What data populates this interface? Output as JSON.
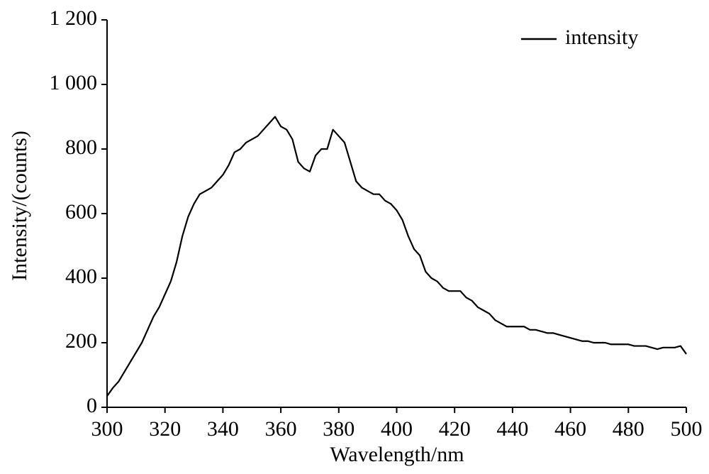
{
  "chart_data": {
    "type": "line",
    "xlabel": "Wavelength/nm",
    "ylabel": "Intensity/(counts)",
    "x": [
      300,
      302,
      304,
      306,
      308,
      310,
      312,
      314,
      316,
      318,
      320,
      322,
      324,
      326,
      328,
      330,
      332,
      334,
      336,
      338,
      340,
      342,
      344,
      346,
      348,
      350,
      352,
      354,
      356,
      358,
      360,
      362,
      364,
      366,
      368,
      370,
      372,
      374,
      376,
      378,
      380,
      382,
      384,
      386,
      388,
      390,
      392,
      394,
      396,
      398,
      400,
      402,
      404,
      406,
      408,
      410,
      412,
      414,
      416,
      418,
      420,
      422,
      424,
      426,
      428,
      430,
      432,
      434,
      436,
      438,
      440,
      442,
      444,
      446,
      448,
      450,
      452,
      454,
      456,
      458,
      460,
      462,
      464,
      466,
      468,
      470,
      472,
      474,
      476,
      478,
      480,
      482,
      484,
      486,
      488,
      490,
      492,
      494,
      496,
      498,
      500
    ],
    "series": [
      {
        "name": "intensity",
        "color": "#000000",
        "values": [
          35,
          60,
          80,
          110,
          140,
          170,
          200,
          240,
          280,
          310,
          350,
          390,
          450,
          530,
          590,
          630,
          660,
          670,
          680,
          700,
          720,
          750,
          790,
          800,
          820,
          830,
          840,
          860,
          880,
          900,
          870,
          860,
          830,
          760,
          740,
          730,
          780,
          800,
          800,
          860,
          840,
          820,
          760,
          700,
          680,
          670,
          660,
          660,
          640,
          630,
          610,
          580,
          530,
          490,
          470,
          420,
          400,
          390,
          370,
          360,
          360,
          360,
          340,
          330,
          310,
          300,
          290,
          270,
          260,
          250,
          250,
          250,
          250,
          240,
          240,
          235,
          230,
          230,
          225,
          220,
          215,
          210,
          205,
          205,
          200,
          200,
          200,
          195,
          195,
          195,
          195,
          190,
          190,
          190,
          185,
          180,
          185,
          185,
          185,
          190,
          165
        ]
      }
    ],
    "xlim": [
      300,
      500
    ],
    "xticks": [
      300,
      320,
      340,
      360,
      380,
      400,
      420,
      440,
      460,
      480,
      500
    ],
    "ylim": [
      0,
      1200
    ],
    "yticks": [
      0,
      200,
      400,
      600,
      800,
      {
        "value": 1000,
        "label": "1 000"
      },
      {
        "value": 1200,
        "label": "1 200"
      }
    ],
    "legend": "upper right"
  }
}
